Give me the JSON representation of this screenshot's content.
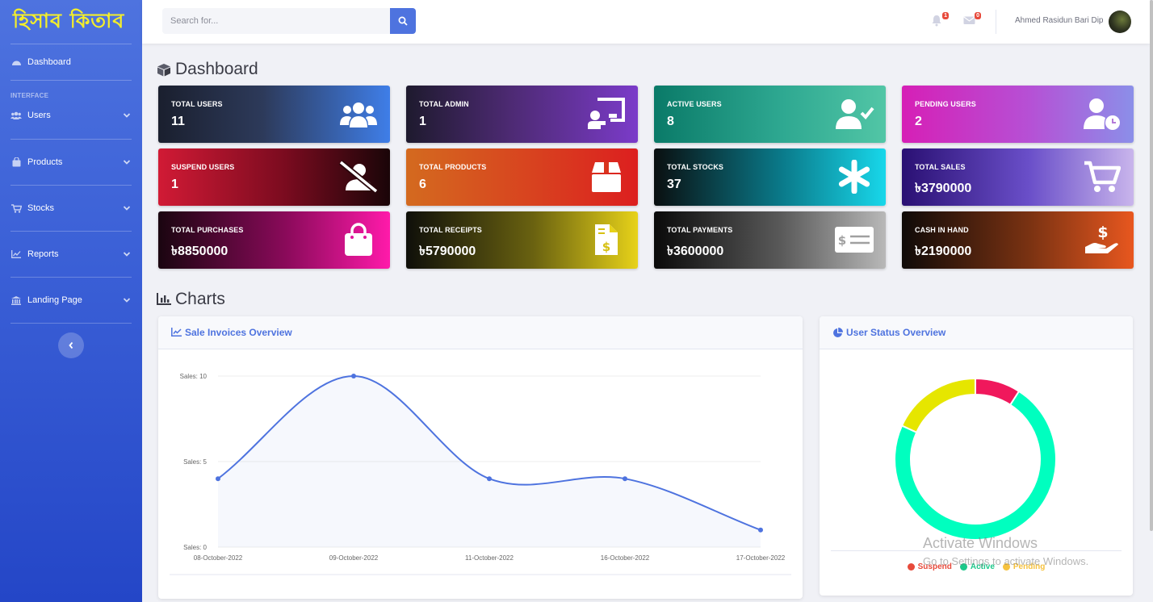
{
  "brand": {
    "title": "হিসাব কিতাব"
  },
  "sidebar": {
    "dashboard": "Dashboard",
    "heading": "INTERFACE",
    "items": [
      {
        "label": "Users",
        "icon": "users-icon"
      },
      {
        "label": "Products",
        "icon": "shopping-bag-icon"
      },
      {
        "label": "Stocks",
        "icon": "cart-icon"
      },
      {
        "label": "Reports",
        "icon": "chart-line-icon"
      },
      {
        "label": "Landing Page",
        "icon": "landmark-icon"
      }
    ]
  },
  "topbar": {
    "search_placeholder": "Search for...",
    "alerts_count": "1",
    "messages_count": "0",
    "user_name": "Ahmed Rasidun Bari Dip"
  },
  "dashboard": {
    "title": "Dashboard",
    "cards": [
      {
        "label": "TOTAL USERS",
        "value": "11",
        "icon": "users-icon"
      },
      {
        "label": "TOTAL ADMIN",
        "value": "1",
        "icon": "chalkboard-teacher-icon"
      },
      {
        "label": "ACTIVE USERS",
        "value": "8",
        "icon": "user-check-icon"
      },
      {
        "label": "PENDING USERS",
        "value": "2",
        "icon": "user-clock-icon"
      },
      {
        "label": "SUSPEND USERS",
        "value": "1",
        "icon": "user-slash-icon"
      },
      {
        "label": "TOTAL PRODUCTS",
        "value": "6",
        "icon": "box-icon"
      },
      {
        "label": "TOTAL STOCKS",
        "value": "37",
        "icon": "asterisk-icon"
      },
      {
        "label": "TOTAL SALES",
        "value": "৳3790000",
        "icon": "cart-icon"
      },
      {
        "label": "TOTAL PURCHASES",
        "value": "৳8850000",
        "icon": "shopping-bag-icon"
      },
      {
        "label": "TOTAL RECEIPTS",
        "value": "৳5790000",
        "icon": "file-invoice-dollar-icon"
      },
      {
        "label": "TOTAL PAYMENTS",
        "value": "৳3600000",
        "icon": "money-check-icon"
      },
      {
        "label": "CASH IN HAND",
        "value": "৳2190000",
        "icon": "hand-holding-usd-icon"
      }
    ]
  },
  "charts": {
    "title": "Charts",
    "sales_title": "Sale Invoices Overview",
    "status_title": "User Status Overview",
    "legend": [
      {
        "label": "Suspend",
        "color": "#e74a3b"
      },
      {
        "label": "Active",
        "color": "#1cc88a"
      },
      {
        "label": "Pending",
        "color": "#f6c23e"
      }
    ]
  },
  "watermark": {
    "line1": "Activate Windows",
    "line2": "Go to Settings to activate Windows."
  },
  "chart_data": [
    {
      "type": "line",
      "title": "Sale Invoices Overview",
      "categories": [
        "08-October-2022",
        "09-October-2022",
        "11-October-2022",
        "16-October-2022",
        "17-October-2022"
      ],
      "values": [
        4,
        10,
        4,
        4,
        1
      ],
      "ylim": [
        0,
        10
      ],
      "yticks": [
        "Sales: 0",
        "Sales: 5",
        "Sales: 10"
      ],
      "color": "#4e73df"
    },
    {
      "type": "pie",
      "title": "User Status Overview",
      "labels": [
        "Suspend",
        "Active",
        "Pending"
      ],
      "values": [
        1,
        8,
        2
      ],
      "colors": [
        "#f0185c",
        "#00ffbf",
        "#e6e600"
      ]
    }
  ]
}
